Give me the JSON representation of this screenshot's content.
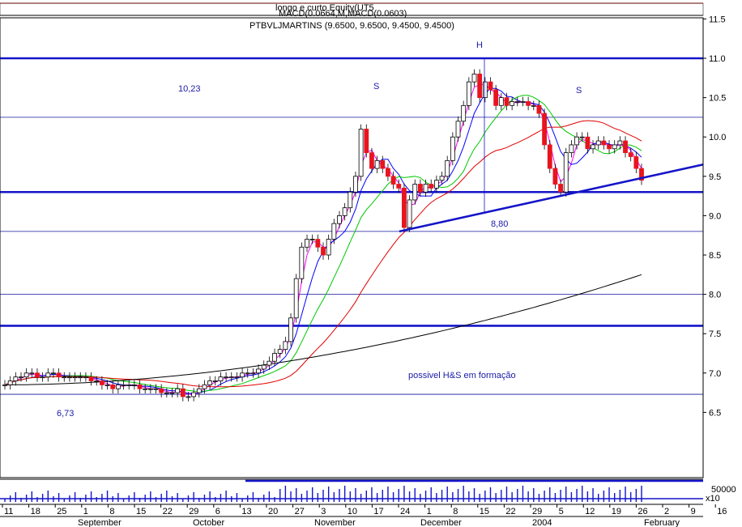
{
  "header": {
    "top_text": "longo e curto Equity(UT5",
    "macd_text": "MACD(0.0664,M,MACD(0.0603)",
    "instrument": "PTBVLJMARTINS (9.6500, 9.6500, 9.4500, 9.4500)"
  },
  "colors": {
    "up": "#000000",
    "down": "#e8141e",
    "sr_lines": "#1414c8",
    "ma5": "#ff00ff",
    "ma10": "#0000ff",
    "ma20": "#00c800",
    "ma50": "#e00000",
    "ma200": "#000000"
  },
  "annotations": {
    "left_shoulder": "S",
    "head": "H",
    "right_shoulder": "S",
    "target_high": "10,23",
    "neck_level": "8,80",
    "low_level": "6,73",
    "pattern_note": "possivel H&S em formação"
  },
  "chart_data": {
    "type": "candlestick",
    "ylim": [
      6.1,
      11.5
    ],
    "y_ticks": [
      "11.5",
      "11.0",
      "10.5",
      "10.0",
      "9.5",
      "9.0",
      "8.5",
      "8.0",
      "7.5",
      "7.0",
      "6.5"
    ],
    "x_day_ticks": [
      "11",
      "18",
      "25",
      "1",
      "8",
      "15",
      "22",
      "29",
      "6",
      "13",
      "20",
      "27",
      "3",
      "10",
      "17",
      "24",
      "1",
      "8",
      "15",
      "22",
      "29",
      "5",
      "12",
      "19",
      "26",
      "2",
      "9",
      "16"
    ],
    "x_month_labels": [
      "September",
      "October",
      "November",
      "December",
      "2004",
      "February"
    ],
    "volume_tick": "50000",
    "volume_scale": "x10",
    "horizontal_levels": [
      {
        "value": 11.0,
        "style": "bold"
      },
      {
        "value": 9.3,
        "style": "bold"
      },
      {
        "value": 7.6,
        "style": "bold"
      },
      {
        "value": 10.25,
        "style": "thin"
      },
      {
        "value": 8.8,
        "style": "thin"
      },
      {
        "value": 8.0,
        "style": "thin"
      },
      {
        "value": 6.73,
        "style": "thin"
      }
    ],
    "close_series": [
      6.85,
      6.9,
      6.95,
      6.95,
      7.0,
      7.0,
      6.95,
      6.95,
      7.0,
      7.0,
      6.95,
      6.95,
      6.95,
      6.95,
      6.95,
      6.95,
      6.9,
      6.9,
      6.85,
      6.85,
      6.8,
      6.85,
      6.85,
      6.85,
      6.85,
      6.8,
      6.8,
      6.8,
      6.8,
      6.75,
      6.75,
      6.75,
      6.8,
      6.7,
      6.7,
      6.75,
      6.8,
      6.85,
      6.9,
      6.9,
      6.95,
      6.95,
      6.95,
      6.95,
      7.0,
      7.0,
      7.0,
      7.05,
      7.1,
      7.15,
      7.25,
      7.3,
      7.4,
      7.7,
      8.2,
      8.6,
      8.7,
      8.7,
      8.6,
      8.5,
      8.7,
      8.9,
      9.0,
      9.1,
      9.3,
      9.5,
      10.1,
      9.8,
      9.6,
      9.7,
      9.6,
      9.5,
      9.4,
      9.35,
      8.85,
      9.2,
      9.4,
      9.3,
      9.4,
      9.35,
      9.45,
      9.5,
      9.7,
      10.0,
      10.2,
      10.4,
      10.7,
      10.8,
      10.5,
      10.7,
      10.6,
      10.4,
      10.5,
      10.4,
      10.45,
      10.45,
      10.45,
      10.4,
      10.4,
      10.3,
      9.9,
      9.6,
      9.4,
      9.3,
      9.8,
      9.9,
      10.0,
      10.0,
      9.85,
      9.9,
      9.95,
      9.9,
      9.85,
      9.9,
      9.95,
      9.8,
      9.75,
      9.6,
      9.45
    ],
    "pattern": {
      "left_shoulder": 10.23,
      "head": 11.0,
      "right_shoulder": 10.23,
      "neckline_start": 8.8,
      "neckline_end": 9.65
    },
    "moving_averages": [
      {
        "key": "ma5"
      },
      {
        "key": "ma10"
      },
      {
        "key": "ma20"
      },
      {
        "key": "ma50"
      },
      {
        "key": "ma200"
      }
    ]
  }
}
